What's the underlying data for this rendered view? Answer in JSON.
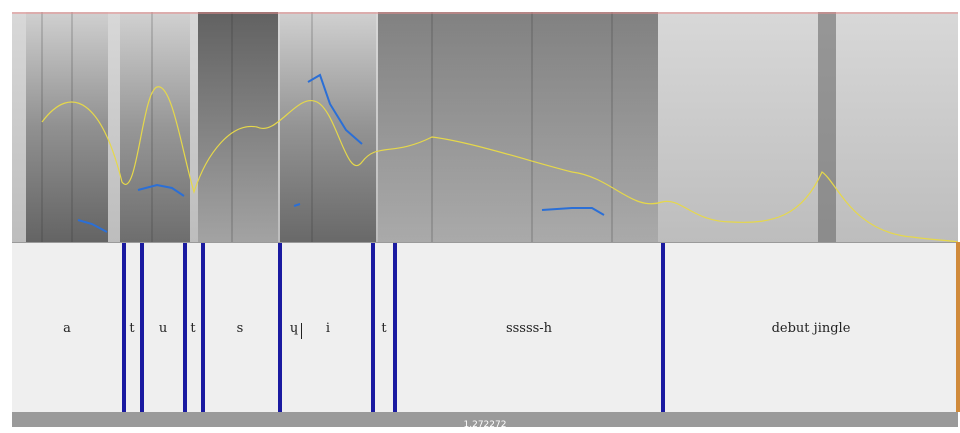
{
  "spectrogram": {
    "top_label": "",
    "mid_label": "",
    "bottom_label": ""
  },
  "tier": {
    "segments": [
      {
        "label": "a"
      },
      {
        "label": "t"
      },
      {
        "label": "u"
      },
      {
        "label": "t"
      },
      {
        "label": "s"
      },
      {
        "label": "ɥ"
      },
      {
        "label": "i"
      },
      {
        "label": "t"
      },
      {
        "label": "sssss-h"
      },
      {
        "label": "debut jingle"
      }
    ]
  },
  "status": {
    "time_value": "1.272272"
  },
  "colors": {
    "boundary": "#1a1aa0",
    "pitch_track": "#2b6fd6",
    "intensity_curve": "#e6d84a",
    "axis_text": "#7acc3a"
  }
}
